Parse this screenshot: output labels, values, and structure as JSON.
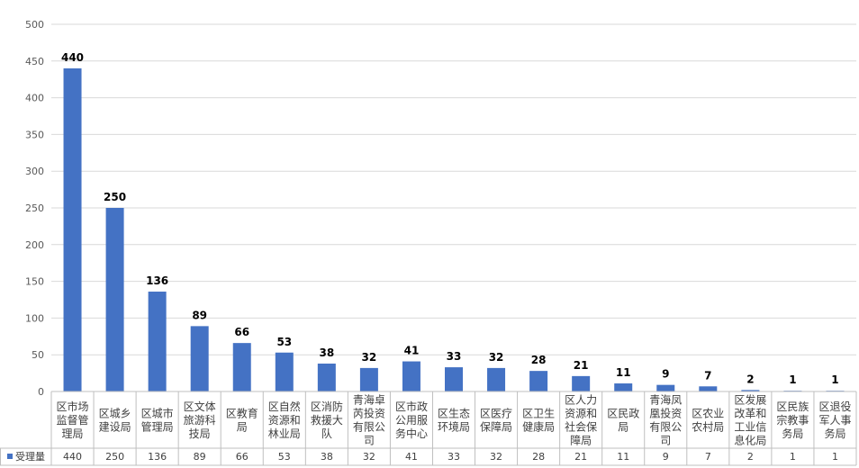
{
  "chart_data": {
    "type": "bar",
    "categories": [
      "区市场监督管理局",
      "区城乡建设局",
      "区城市管理局",
      "区文体旅游科技局",
      "区教育局",
      "区自然资源和林业局",
      "区消防救援大队",
      "青海卓芮投资有限公司",
      "区市政公用服务中心",
      "区生态环境局",
      "区医疗保障局",
      "区卫生健康局",
      "区人力资源和社会保障局",
      "区民政局",
      "青海凤凰投资有限公司",
      "区农业农村局",
      "区发展改革和工业信息化局",
      "区民族宗教事务局",
      "区退役军人事务局"
    ],
    "category_lines": [
      [
        "区市场",
        "监督管",
        "理局"
      ],
      [
        "区城乡",
        "建设局"
      ],
      [
        "区城市",
        "管理局"
      ],
      [
        "区文体",
        "旅游科",
        "技局"
      ],
      [
        "区教育",
        "局"
      ],
      [
        "区自然",
        "资源和",
        "林业局"
      ],
      [
        "区消防",
        "救援大",
        "队"
      ],
      [
        "青海卓",
        "芮投资",
        "有限公",
        "司"
      ],
      [
        "区市政",
        "公用服",
        "务中心"
      ],
      [
        "区生态",
        "环境局"
      ],
      [
        "区医疗",
        "保障局"
      ],
      [
        "区卫生",
        "健康局"
      ],
      [
        "区人力",
        "资源和",
        "社会保",
        "障局"
      ],
      [
        "区民政",
        "局"
      ],
      [
        "青海凤",
        "凰投资",
        "有限公",
        "司"
      ],
      [
        "区农业",
        "农村局"
      ],
      [
        "区发展",
        "改革和",
        "工业信",
        "息化局"
      ],
      [
        "区民族",
        "宗教事",
        "务局"
      ],
      [
        "区退役",
        "军人事",
        "务局"
      ]
    ],
    "series": [
      {
        "name": "受理量",
        "values": [
          440,
          250,
          136,
          89,
          66,
          53,
          38,
          32,
          41,
          33,
          32,
          28,
          21,
          11,
          9,
          7,
          2,
          1,
          1
        ]
      }
    ],
    "ylim": [
      0,
      500
    ],
    "yticks": [
      0,
      50,
      100,
      150,
      200,
      250,
      300,
      350,
      400,
      450,
      500
    ],
    "grid": true,
    "data_table": true,
    "colors": {
      "bar": "#4472c4",
      "grid": "#d9d9d9",
      "border": "#bfbfbf"
    }
  }
}
